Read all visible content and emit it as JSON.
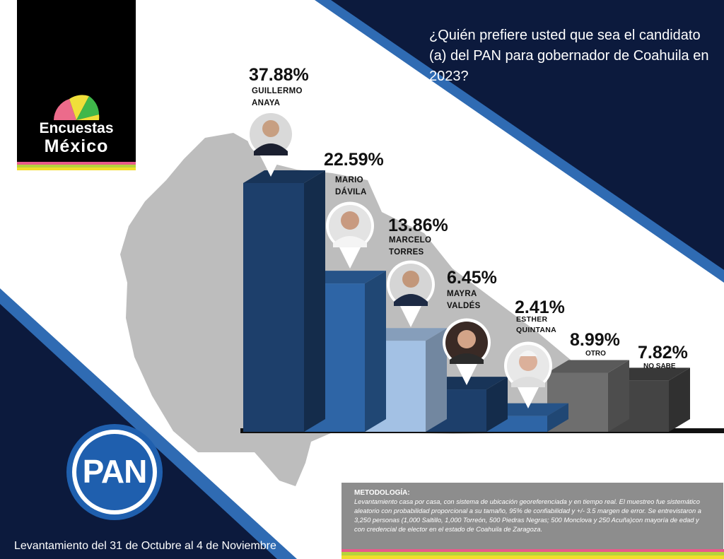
{
  "brand": {
    "line1": "Encuestas",
    "line2": "México"
  },
  "question": "¿Quién prefiere usted que sea el candidato (a) del PAN para gobernador de Coahuila en 2023?",
  "party_logo": "PAN",
  "footer": "Levantamiento del 31 de Octubre al 4 de Noviembre",
  "methodology": {
    "title": "METODOLOGÍA:",
    "text": "Levantamiento casa por casa, con sistema de ubicación georeferenciada y en tiempo real. El muestreo fue sistemático aleatorio con probabilidad proporcional a su tamaño, 95% de confiabilidad y +/- 3.5 margen de error. Se entrevistaron a 3,250 personas  (1,000 Saltillo, 1,000 Torreón, 500 Piedras Negras; 500 Monclova y 250 Acuña)con mayoría de edad y con credencial de elector en el estado de Coahuila de Zaragoza."
  },
  "chart_data": {
    "type": "bar",
    "title": "¿Quién prefiere usted que sea el candidato (a) del PAN para gobernador de Coahuila en 2023?",
    "categories": [
      "GUILLERMO ANAYA",
      "MARIO DÁVILA",
      "MARCELO TORRES",
      "MAYRA VALDÉS",
      "ESTHER QUINTANA",
      "OTRO",
      "NO SABE"
    ],
    "values": [
      37.88,
      22.59,
      13.86,
      6.45,
      2.41,
      8.99,
      7.82
    ],
    "value_labels": [
      "37.88%",
      "22.59%",
      "13.86%",
      "6.45%",
      "2.41%",
      "8.99%",
      "7.82%"
    ],
    "candidate_labels": [
      "GUILLERMO\nANAYA",
      "MARIO\nDÁVILA",
      "MARCELO\nTORRES",
      "MAYRA\nVALDÉS",
      "ESTHER\nQUINTANA",
      "OTRO",
      "NO SABE"
    ],
    "unit": "%",
    "colors": [
      "#1d3f6b",
      "#2e65a6",
      "#a3c1e4",
      "#1d3f6b",
      "#2e65a6",
      "#6e6e6e",
      "#444444"
    ],
    "xlabel": "",
    "ylabel": "",
    "grid": false,
    "legend": "none"
  },
  "colors": {
    "navy": "#0c1a3d",
    "accent_blue": "#2f6bb3",
    "map_gray": "#bdbdbd",
    "stripe_pink": "#e85a8a",
    "stripe_green": "#b6d33c",
    "stripe_yellow": "#f2dd2b"
  }
}
